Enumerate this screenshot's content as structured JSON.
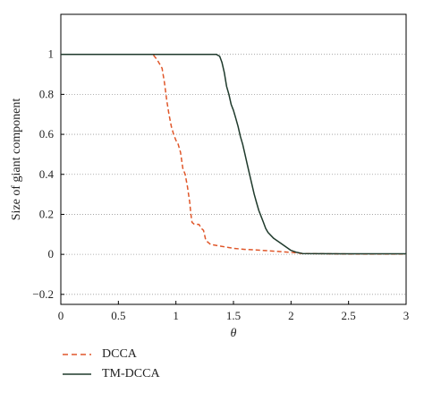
{
  "chart_data": {
    "type": "line",
    "title": "",
    "xlabel": "θ",
    "ylabel": "Size of giant component",
    "xlim": [
      0,
      3
    ],
    "ylim": [
      -0.25,
      1.2
    ],
    "xticks": [
      "0",
      "0.5",
      "1",
      "1.5",
      "2",
      "2.5",
      "3"
    ],
    "xtick_values": [
      0,
      0.5,
      1,
      1.5,
      2,
      2.5,
      3
    ],
    "yticks": [
      "−0.2",
      "0",
      "0.2",
      "0.4",
      "0.6",
      "0.8",
      "1"
    ],
    "ytick_values": [
      -0.2,
      0,
      0.2,
      0.4,
      0.6,
      0.8,
      1
    ],
    "grid": "horizontal dotted",
    "legend_position": "below",
    "series": [
      {
        "name": "DCCA",
        "color": "#e0572a",
        "style": "dashed",
        "x": [
          0,
          0.8,
          0.84,
          0.88,
          0.9,
          0.92,
          0.94,
          0.96,
          0.98,
          1.0,
          1.02,
          1.04,
          1.06,
          1.08,
          1.1,
          1.12,
          1.13,
          1.14,
          1.16,
          1.2,
          1.22,
          1.24,
          1.26,
          1.3,
          1.4,
          1.5,
          1.6,
          1.7,
          1.8,
          1.9,
          2.0,
          2.1,
          2.5,
          3.0
        ],
        "y": [
          1.0,
          1.0,
          0.97,
          0.93,
          0.86,
          0.77,
          0.7,
          0.64,
          0.6,
          0.57,
          0.55,
          0.51,
          0.43,
          0.4,
          0.34,
          0.26,
          0.2,
          0.16,
          0.15,
          0.15,
          0.13,
          0.12,
          0.07,
          0.05,
          0.04,
          0.03,
          0.025,
          0.022,
          0.018,
          0.014,
          0.01,
          0.004,
          0.002,
          0.002
        ]
      },
      {
        "name": "TM-DCCA",
        "color": "#1f3a2c",
        "style": "solid",
        "x": [
          0,
          1.3,
          1.35,
          1.38,
          1.4,
          1.42,
          1.44,
          1.46,
          1.48,
          1.5,
          1.52,
          1.54,
          1.56,
          1.58,
          1.6,
          1.62,
          1.64,
          1.66,
          1.68,
          1.7,
          1.72,
          1.74,
          1.76,
          1.78,
          1.8,
          1.85,
          1.9,
          1.95,
          2.0,
          2.05,
          2.1,
          2.5,
          3.0
        ],
        "y": [
          1.0,
          1.0,
          1.0,
          0.99,
          0.96,
          0.91,
          0.84,
          0.8,
          0.75,
          0.72,
          0.68,
          0.64,
          0.59,
          0.55,
          0.5,
          0.45,
          0.4,
          0.35,
          0.3,
          0.26,
          0.22,
          0.19,
          0.16,
          0.13,
          0.11,
          0.08,
          0.06,
          0.04,
          0.02,
          0.01,
          0.004,
          0.003,
          0.003
        ]
      }
    ]
  }
}
